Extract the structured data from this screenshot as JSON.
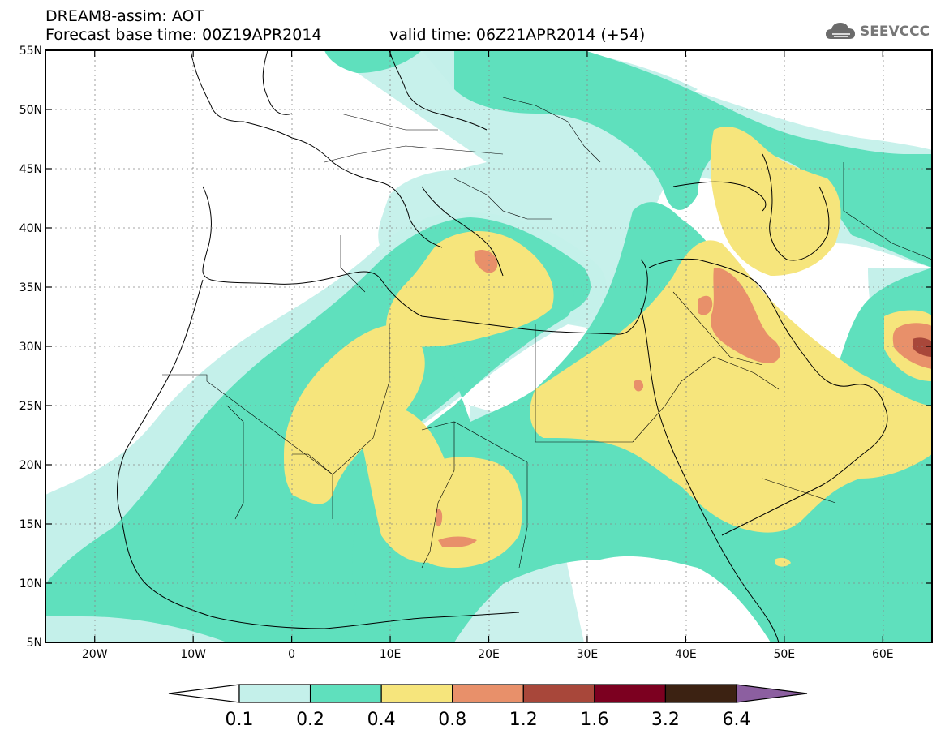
{
  "header": {
    "line1": "DREAM8-assim: AOT",
    "line2": "Forecast base time: 00Z19APR2014",
    "valid": "valid time: 06Z21APR2014 (+54)",
    "logo_text": "SEEVCCC"
  },
  "map": {
    "lon_range": [
      -25,
      65
    ],
    "lat_range": [
      5,
      55
    ],
    "lat_ticks": [
      {
        "lat": 55,
        "label": "55N"
      },
      {
        "lat": 50,
        "label": "50N"
      },
      {
        "lat": 45,
        "label": "45N"
      },
      {
        "lat": 40,
        "label": "40N"
      },
      {
        "lat": 35,
        "label": "35N"
      },
      {
        "lat": 30,
        "label": "30N"
      },
      {
        "lat": 25,
        "label": "25N"
      },
      {
        "lat": 20,
        "label": "20N"
      },
      {
        "lat": 15,
        "label": "15N"
      },
      {
        "lat": 10,
        "label": "10N"
      },
      {
        "lat": 5,
        "label": "5N"
      }
    ],
    "lon_ticks": [
      {
        "lon": -20,
        "label": "20W"
      },
      {
        "lon": -10,
        "label": "10W"
      },
      {
        "lon": 0,
        "label": "0"
      },
      {
        "lon": 10,
        "label": "10E"
      },
      {
        "lon": 20,
        "label": "20E"
      },
      {
        "lon": 30,
        "label": "30E"
      },
      {
        "lon": 40,
        "label": "40E"
      },
      {
        "lon": 50,
        "label": "50E"
      },
      {
        "lon": 60,
        "label": "60E"
      }
    ]
  },
  "colorbar": {
    "colors": [
      "#ffffff",
      "#c4f0ea",
      "#5fe0bd",
      "#f6e57c",
      "#e8906a",
      "#a8473a",
      "#7c0020",
      "#3c2212",
      "#8c5fa0"
    ],
    "labels": [
      "0.1",
      "0.2",
      "0.4",
      "0.8",
      "1.2",
      "1.6",
      "3.2",
      "6.4"
    ]
  }
}
